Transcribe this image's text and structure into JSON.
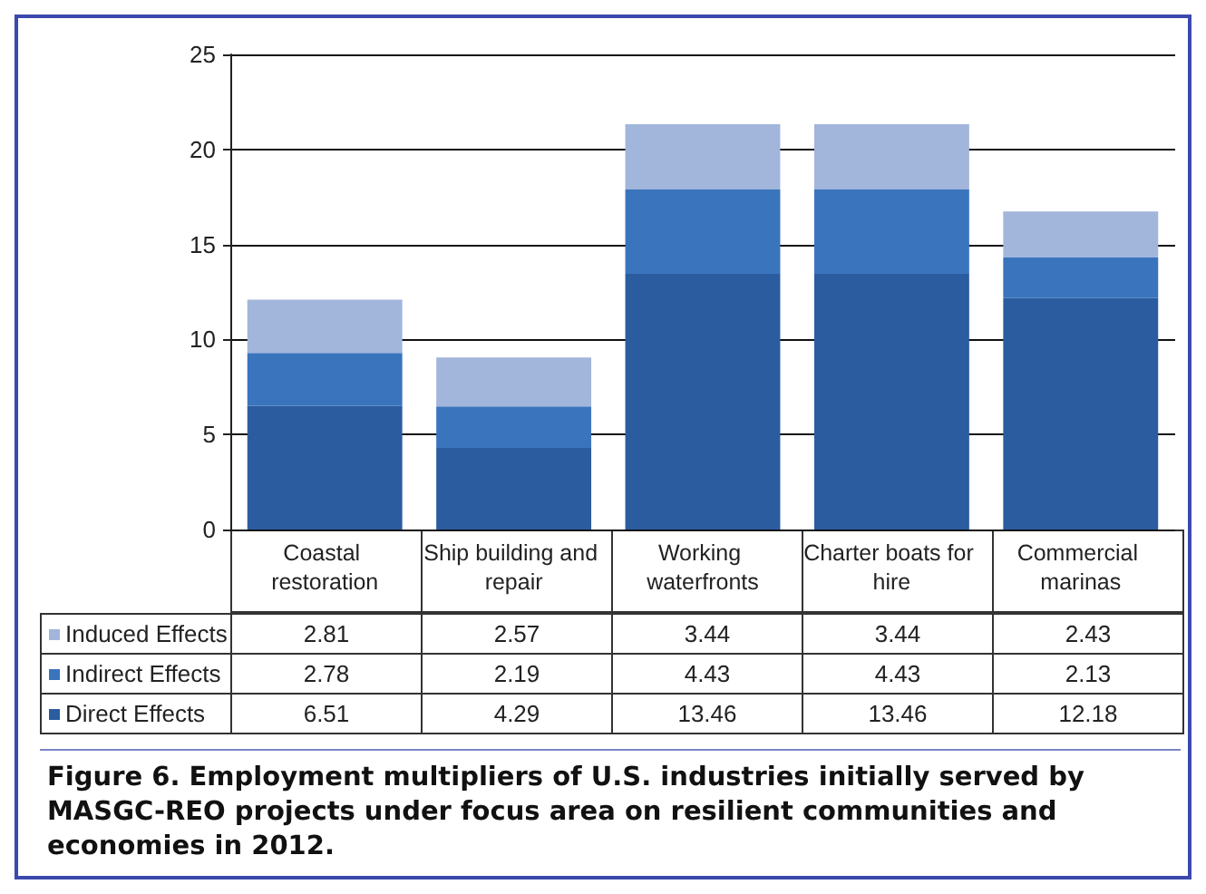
{
  "chart_data": {
    "type": "bar",
    "stacked": true,
    "categories": [
      "Coastal restoration",
      "Ship building and repair",
      "Working waterfronts",
      "Charter boats for hire",
      "Commercial marinas"
    ],
    "series": [
      {
        "name": "Direct Effects",
        "color": "#2b5c9f",
        "values": [
          6.51,
          4.29,
          13.46,
          13.46,
          12.18
        ]
      },
      {
        "name": "Indirect Effects",
        "color": "#3a74bd",
        "values": [
          2.78,
          2.19,
          4.43,
          4.43,
          2.13
        ]
      },
      {
        "name": "Induced Effects",
        "color": "#a2b5db",
        "values": [
          2.81,
          2.57,
          3.44,
          3.44,
          2.43
        ]
      }
    ],
    "ylim": [
      0,
      25
    ],
    "yticks": [
      0,
      5,
      10,
      15,
      20,
      25
    ],
    "grid": "y",
    "legend": "bottom",
    "data_labels": true,
    "annotations": [
      "Figure 6. Employment multipliers of U.S. industries initially served by MASGC-REO projects under focus area on resilient communities and economies in 2012."
    ]
  }
}
